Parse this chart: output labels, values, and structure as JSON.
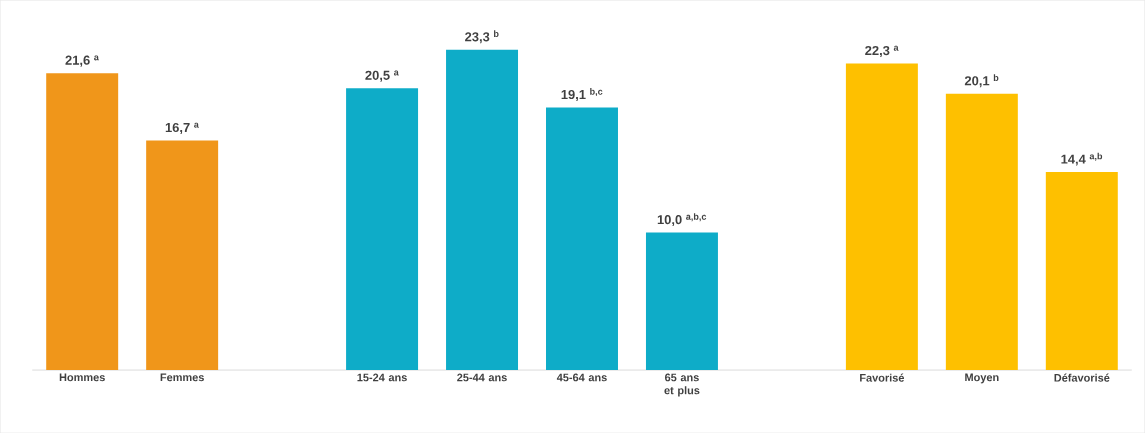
{
  "chart_data": {
    "type": "bar",
    "categories": [
      "Hommes",
      "Femmes",
      null,
      "15-24 ans",
      "25-44 ans",
      "45-64 ans",
      "65 ans et plus",
      null,
      "Favorisé",
      "Moyen",
      "Défavorisé"
    ],
    "values": [
      21.6,
      16.7,
      null,
      20.5,
      23.3,
      19.1,
      10.0,
      null,
      22.3,
      20.1,
      14.4
    ],
    "colors": [
      "#f0961a",
      "#f0961a",
      null,
      "#0eacc8",
      "#0eacc8",
      "#0eacc8",
      "#0eacc8",
      null,
      "#fec000",
      "#fec000",
      "#fec000"
    ],
    "value_labels": [
      "21,6 $^{a}$",
      "16,7 $^{a}$",
      null,
      "20,5 $^{a}$",
      "23,3 $^{b}$",
      "19,1 $^{b,c}$",
      "10,0 $^{a,b,c}$",
      null,
      "22,3 $^{a}$",
      "20,1 $^{b}$",
      "14,4 $^{a,b}$"
    ]
  }
}
